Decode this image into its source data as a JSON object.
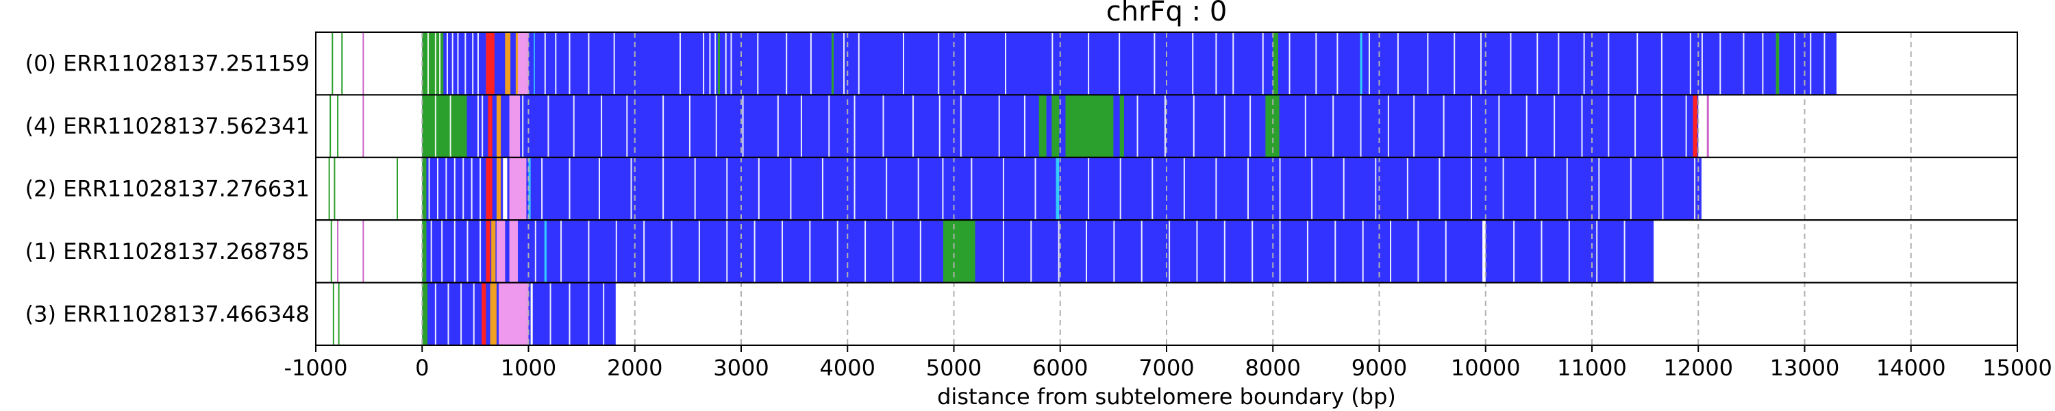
{
  "chart_data": {
    "type": "heatmap",
    "title": "chrFq : 0",
    "xlabel": "distance from subtelomere boundary (bp)",
    "xlim": [
      -1000,
      15000
    ],
    "xticks": [
      -1000,
      0,
      1000,
      2000,
      3000,
      4000,
      5000,
      6000,
      7000,
      8000,
      9000,
      10000,
      11000,
      12000,
      13000,
      14000,
      15000
    ],
    "x_tick_labels": [
      "-1000",
      "0",
      "1000",
      "2000",
      "3000",
      "4000",
      "5000",
      "6000",
      "7000",
      "8000",
      "9000",
      "10000",
      "11000",
      "12000",
      "13000",
      "14000",
      "15000"
    ],
    "grid": "vertical dashed at x ticks",
    "colors": {
      "primary": "#3333ff",
      "green": "#2ca02c",
      "white": "#ffffff",
      "cyan": "#33ccff",
      "red": "#ff2222",
      "orange": "#f0a020",
      "pink": "#ee99ee",
      "magenta": "#cc66cc"
    },
    "rows": [
      {
        "label": "(0) ERR11028137.251159",
        "start": 0,
        "end": 13300,
        "early": [
          [
            -850,
            "green"
          ],
          [
            -760,
            "green"
          ],
          [
            -560,
            "magenta"
          ]
        ],
        "blocks": [
          [
            0,
            200,
            "green"
          ],
          [
            600,
            680,
            "red"
          ],
          [
            780,
            830,
            "orange"
          ],
          [
            880,
            930,
            "orange"
          ],
          [
            900,
            1000,
            "pink"
          ],
          [
            1050,
            1060,
            "cyan"
          ],
          [
            2780,
            2800,
            "green"
          ],
          [
            3850,
            3870,
            "green"
          ],
          [
            8000,
            8050,
            "green"
          ],
          [
            8820,
            8840,
            "cyan"
          ],
          [
            12730,
            12760,
            "green"
          ]
        ],
        "lines": [
          50,
          120,
          160,
          230,
          280,
          330,
          400,
          470,
          520,
          1150,
          1250,
          1380,
          1560,
          1800,
          2420,
          2640,
          2700,
          2750,
          2850,
          2900,
          3150,
          3420,
          3650,
          3960,
          4100,
          4520,
          4850,
          5100,
          5480,
          5920,
          6260,
          6550,
          6880,
          7240,
          7460,
          7620,
          7900,
          8150,
          8400,
          8600,
          8900,
          9170,
          9450,
          9700,
          9950,
          10230,
          10480,
          10680,
          10920,
          11150,
          11420,
          11650,
          11920,
          12030,
          12200,
          12420,
          12600,
          12900,
          13050,
          13180
        ]
      },
      {
        "label": "(4) ERR11028137.562341",
        "start": 0,
        "end": 12000,
        "early": [
          [
            -870,
            "green"
          ],
          [
            -800,
            "green"
          ],
          [
            -560,
            "magenta"
          ]
        ],
        "blocks": [
          [
            0,
            420,
            "green"
          ],
          [
            620,
            660,
            "red"
          ],
          [
            700,
            740,
            "orange"
          ],
          [
            820,
            920,
            "pink"
          ],
          [
            5800,
            5870,
            "green"
          ],
          [
            5920,
            5990,
            "green"
          ],
          [
            6050,
            6500,
            "green"
          ],
          [
            6560,
            6600,
            "green"
          ],
          [
            7930,
            8060,
            "green"
          ],
          [
            11950,
            11990,
            "red"
          ]
        ],
        "lines": [
          120,
          260,
          520,
          560,
          940,
          1180,
          1420,
          1680,
          1920,
          2260,
          2510,
          2760,
          3010,
          3340,
          3560,
          3820,
          4060,
          4330,
          4610,
          4860,
          5060,
          5420,
          5660,
          6720,
          6980,
          7250,
          7540,
          7780,
          8300,
          8560,
          8820,
          9080,
          9320,
          9600,
          9860,
          10120,
          10380,
          10640,
          10900,
          11150,
          11400,
          11650,
          11880
        ],
        "extras": [
          [
            12080,
            12100,
            "magenta"
          ]
        ]
      },
      {
        "label": "(2) ERR11028137.276631",
        "start": 0,
        "end": 12030,
        "early": [
          [
            -880,
            "green"
          ],
          [
            -830,
            "green"
          ],
          [
            -240,
            "green"
          ]
        ],
        "blocks": [
          [
            0,
            40,
            "green"
          ],
          [
            600,
            660,
            "red"
          ],
          [
            700,
            740,
            "orange"
          ],
          [
            760,
            800,
            "white"
          ],
          [
            820,
            980,
            "pink"
          ],
          [
            1000,
            1020,
            "cyan"
          ],
          [
            5960,
            5990,
            "cyan"
          ]
        ],
        "lines": [
          60,
          140,
          220,
          300,
          380,
          460,
          540,
          1120,
          1380,
          1660,
          1960,
          2260,
          2560,
          2860,
          3160,
          3460,
          3760,
          4060,
          4360,
          4660,
          4890,
          5160,
          5460,
          5760,
          6260,
          6560,
          6860,
          7160,
          7460,
          7760,
          8060,
          8360,
          8660,
          8960,
          9260,
          9560,
          9860,
          10160,
          10460,
          10760,
          11060,
          11360,
          11660,
          11960
        ]
      },
      {
        "label": "(1) ERR11028137.268785",
        "start": 0,
        "end": 11580,
        "early": [
          [
            -860,
            "green"
          ],
          [
            -800,
            "magenta"
          ],
          [
            -560,
            "magenta"
          ]
        ],
        "blocks": [
          [
            0,
            40,
            "green"
          ],
          [
            600,
            640,
            "red"
          ],
          [
            650,
            690,
            "orange"
          ],
          [
            700,
            780,
            "pink"
          ],
          [
            820,
            900,
            "pink"
          ],
          [
            1150,
            1170,
            "cyan"
          ],
          [
            4900,
            5200,
            "green"
          ],
          [
            9970,
            10000,
            "white"
          ]
        ],
        "lines": [
          80,
          180,
          300,
          420,
          540,
          1060,
          1300,
          1560,
          1820,
          2080,
          2340,
          2600,
          2860,
          3120,
          3380,
          3640,
          3900,
          4160,
          4420,
          4680,
          5460,
          5720,
          5980,
          6240,
          6500,
          6760,
          7020,
          7280,
          7540,
          7800,
          8060,
          8320,
          8580,
          8840,
          9100,
          9360,
          9620,
          10260,
          10520,
          10780,
          11040,
          11300
        ]
      },
      {
        "label": "(3) ERR11028137.466348",
        "start": 0,
        "end": 1820,
        "early": [
          [
            -840,
            "green"
          ],
          [
            -790,
            "green"
          ]
        ],
        "blocks": [
          [
            0,
            50,
            "green"
          ],
          [
            560,
            600,
            "red"
          ],
          [
            640,
            700,
            "orange"
          ],
          [
            720,
            1000,
            "pink"
          ],
          [
            1020,
            1040,
            "white"
          ]
        ],
        "lines": [
          120,
          240,
          360,
          480,
          1200,
          1380,
          1560,
          1700
        ]
      }
    ]
  }
}
